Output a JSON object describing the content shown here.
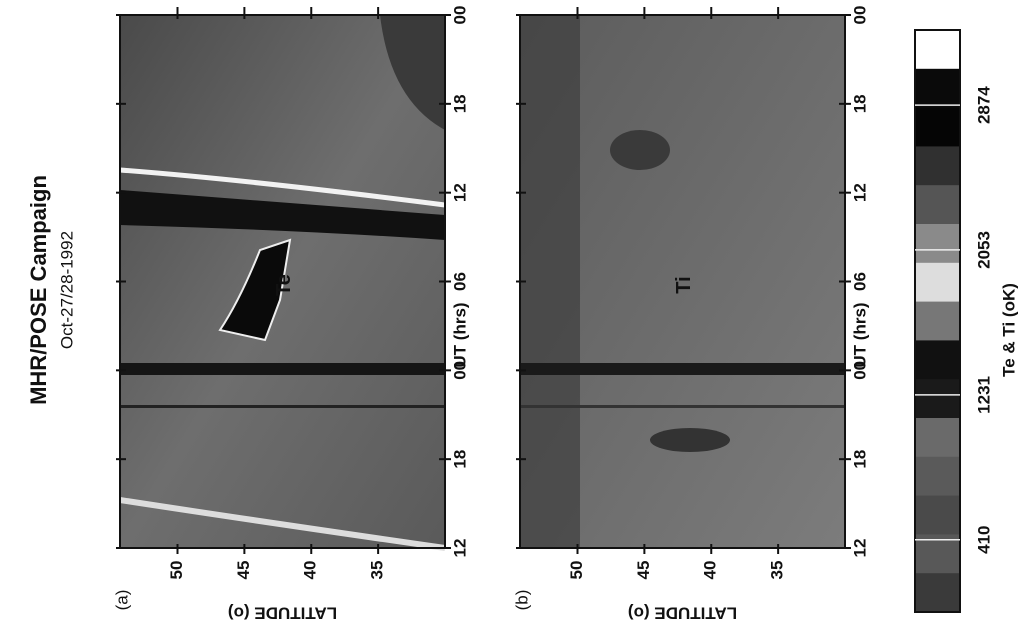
{
  "figure": {
    "title": "MHR/POSE Campaign",
    "subtitle": "Oct-27/28-1992"
  },
  "chart_data": [
    {
      "type": "heatmap",
      "panel_label": "(a)",
      "title": "Te",
      "xlabel": "UT (hrs)",
      "ylabel": "LATITUDE (o)",
      "xlim": [
        12,
        48
      ],
      "xticks": [
        12,
        18,
        {
          "value": 24,
          "label": "00"
        },
        {
          "value": 30,
          "label": "06"
        },
        {
          "value": 36,
          "label": "12"
        },
        {
          "value": 42,
          "label": "18"
        },
        {
          "value": 48,
          "label": "00"
        }
      ],
      "ylim": [
        54.3,
        30
      ],
      "yticks": [
        50,
        45,
        40,
        35
      ]
    },
    {
      "type": "heatmap",
      "panel_label": "(b)",
      "title": "Ti",
      "xlabel": "UT (hrs)",
      "ylabel": "LATITUDE (o)",
      "xlim": [
        12,
        48
      ],
      "xticks": [
        12,
        18,
        {
          "value": 24,
          "label": "00"
        },
        {
          "value": 30,
          "label": "06"
        },
        {
          "value": 36,
          "label": "12"
        },
        {
          "value": 42,
          "label": "18"
        },
        {
          "value": 48,
          "label": "00"
        }
      ],
      "ylim": [
        54.3,
        30
      ],
      "yticks": [
        50,
        45,
        40,
        35
      ]
    }
  ],
  "colorbar": {
    "label": "Te & Ti (oK)",
    "zlim": [
      0,
      3300
    ],
    "ticks": [
      410,
      1231,
      2053,
      2874
    ]
  }
}
